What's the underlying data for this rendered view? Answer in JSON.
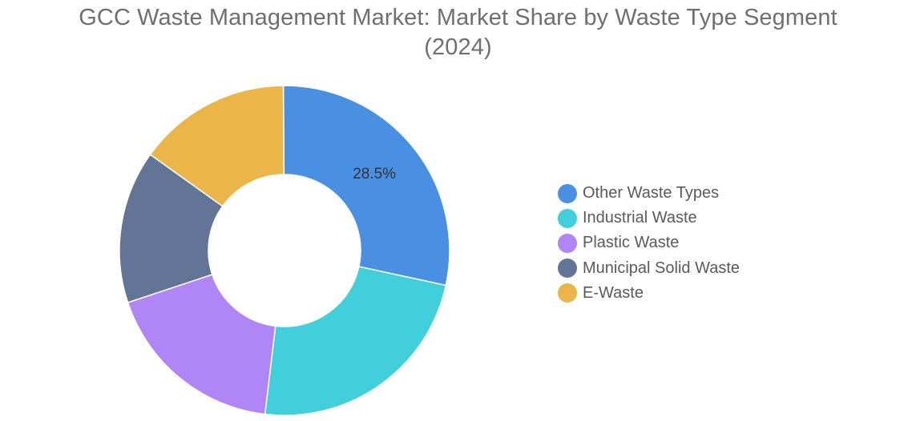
{
  "chart_data": {
    "type": "pie",
    "donut": true,
    "title_lines": [
      "GCC Waste Management Market: Market Share by Waste Type Segment",
      "(2024)"
    ],
    "categories": [
      "Other Waste Types",
      "Industrial Waste",
      "Plastic Waste",
      "Municipal Solid Waste",
      "E-Waste"
    ],
    "values": [
      28.5,
      23.5,
      18.0,
      15.0,
      15.0
    ],
    "colors": [
      "#4a90e2",
      "#41cfdb",
      "#b085f5",
      "#637596",
      "#ebb54a"
    ],
    "data_labels": [
      "28.5%",
      "",
      "",
      "",
      ""
    ],
    "legend_position": "right"
  }
}
